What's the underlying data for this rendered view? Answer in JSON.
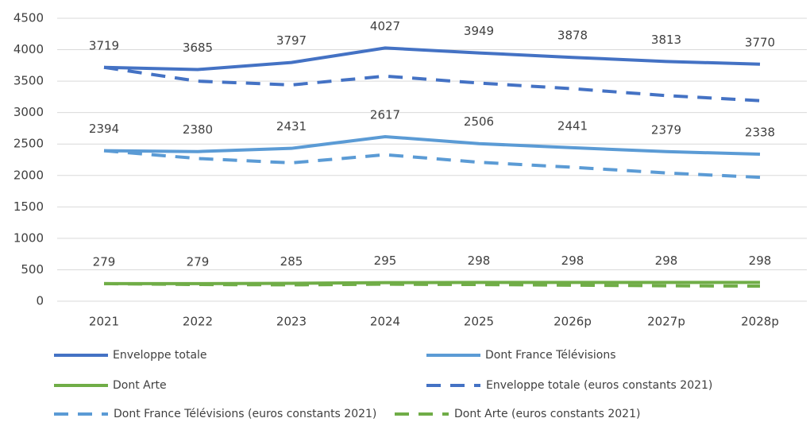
{
  "chart_data": {
    "type": "line",
    "categories": [
      "2021",
      "2022",
      "2023",
      "2024",
      "2025",
      "2026p",
      "2027p",
      "2028p"
    ],
    "ylim": [
      0,
      4500
    ],
    "yticks": [
      0,
      500,
      1000,
      1500,
      2000,
      2500,
      3000,
      3500,
      4000,
      4500
    ],
    "grid": true,
    "series": [
      {
        "name": "Enveloppe totale",
        "color": "#4472c4",
        "dashed": false,
        "data_labels": true,
        "values": [
          3719,
          3685,
          3797,
          4027,
          3949,
          3878,
          3813,
          3770
        ]
      },
      {
        "name": "Dont France Télévisions",
        "color": "#5b9bd5",
        "dashed": false,
        "data_labels": true,
        "values": [
          2394,
          2380,
          2431,
          2617,
          2506,
          2441,
          2379,
          2338
        ]
      },
      {
        "name": "Dont Arte",
        "color": "#70ad47",
        "dashed": false,
        "data_labels": true,
        "values": [
          279,
          279,
          285,
          295,
          298,
          298,
          298,
          298
        ]
      },
      {
        "name": "Enveloppe totale (euros constants 2021)",
        "color": "#4472c4",
        "dashed": true,
        "data_labels": false,
        "values": [
          3719,
          3500,
          3440,
          3580,
          3470,
          3380,
          3270,
          3190
        ]
      },
      {
        "name": "Dont France Télévisions (euros constants 2021)",
        "color": "#5b9bd5",
        "dashed": true,
        "data_labels": false,
        "values": [
          2394,
          2270,
          2200,
          2330,
          2210,
          2130,
          2040,
          1970
        ]
      },
      {
        "name": "Dont Arte (euros constants 2021)",
        "color": "#70ad47",
        "dashed": true,
        "data_labels": false,
        "values": [
          279,
          265,
          260,
          270,
          265,
          255,
          245,
          240
        ]
      }
    ]
  }
}
